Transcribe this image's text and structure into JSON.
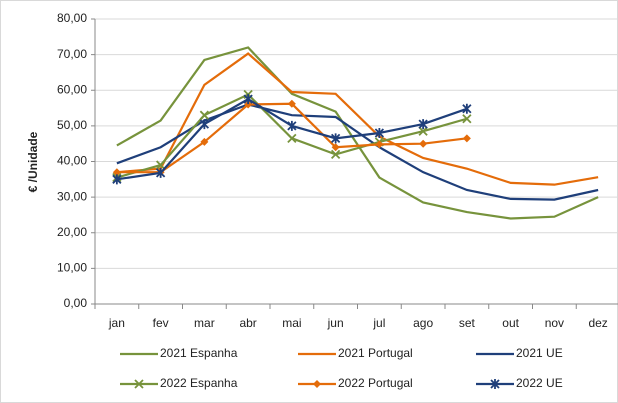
{
  "chart_data": {
    "type": "line",
    "y_label": "€ /Unidade",
    "categories": [
      "jan",
      "fev",
      "mar",
      "abr",
      "mai",
      "jun",
      "jul",
      "ago",
      "set",
      "out",
      "nov",
      "dez"
    ],
    "series": [
      {
        "name": "2021 Espanha",
        "color": "#77933c",
        "marker": "none",
        "values": [
          44.5,
          51.5,
          68.5,
          72,
          59,
          54,
          35.5,
          28.5,
          25.8,
          24,
          24.5,
          30
        ]
      },
      {
        "name": "2021 Portugal",
        "color": "#e46c0a",
        "marker": "none",
        "values": [
          37,
          38,
          61.5,
          70.3,
          59.5,
          59,
          47,
          41,
          38,
          34,
          33.5,
          35.6
        ]
      },
      {
        "name": "2021 UE",
        "color": "#1f3f7a",
        "marker": "none",
        "values": [
          39.5,
          44,
          51.5,
          56,
          53,
          52.5,
          44,
          37,
          32,
          29.5,
          29.3,
          32
        ]
      },
      {
        "name": "2022 Espanha",
        "color": "#77933c",
        "marker": "x",
        "values": [
          35.5,
          39,
          53,
          58.8,
          46.5,
          42,
          45.5,
          48.5,
          52,
          null,
          null,
          null
        ]
      },
      {
        "name": "2022 Portugal",
        "color": "#e46c0a",
        "marker": "diamond",
        "values": [
          37,
          37,
          45.5,
          56,
          56.2,
          44,
          44.8,
          45,
          46.5,
          null,
          null,
          null
        ]
      },
      {
        "name": "2022 UE",
        "color": "#1f3f7a",
        "marker": "asterisk",
        "values": [
          35,
          36.8,
          50.5,
          57.5,
          50,
          46.5,
          48,
          50.5,
          54.8,
          null,
          null,
          null
        ]
      }
    ],
    "ylim": [
      0,
      80
    ],
    "yticks": [
      {
        "value": 0,
        "label": "0,00"
      },
      {
        "value": 10,
        "label": "10,00"
      },
      {
        "value": 20,
        "label": "20,00"
      },
      {
        "value": 30,
        "label": "30,00"
      },
      {
        "value": 40,
        "label": "40,00"
      },
      {
        "value": 50,
        "label": "50,00"
      },
      {
        "value": 60,
        "label": "60,00"
      },
      {
        "value": 70,
        "label": "70,00"
      },
      {
        "value": 80,
        "label": "80,00"
      }
    ],
    "grid": true,
    "legend": "bottom"
  }
}
